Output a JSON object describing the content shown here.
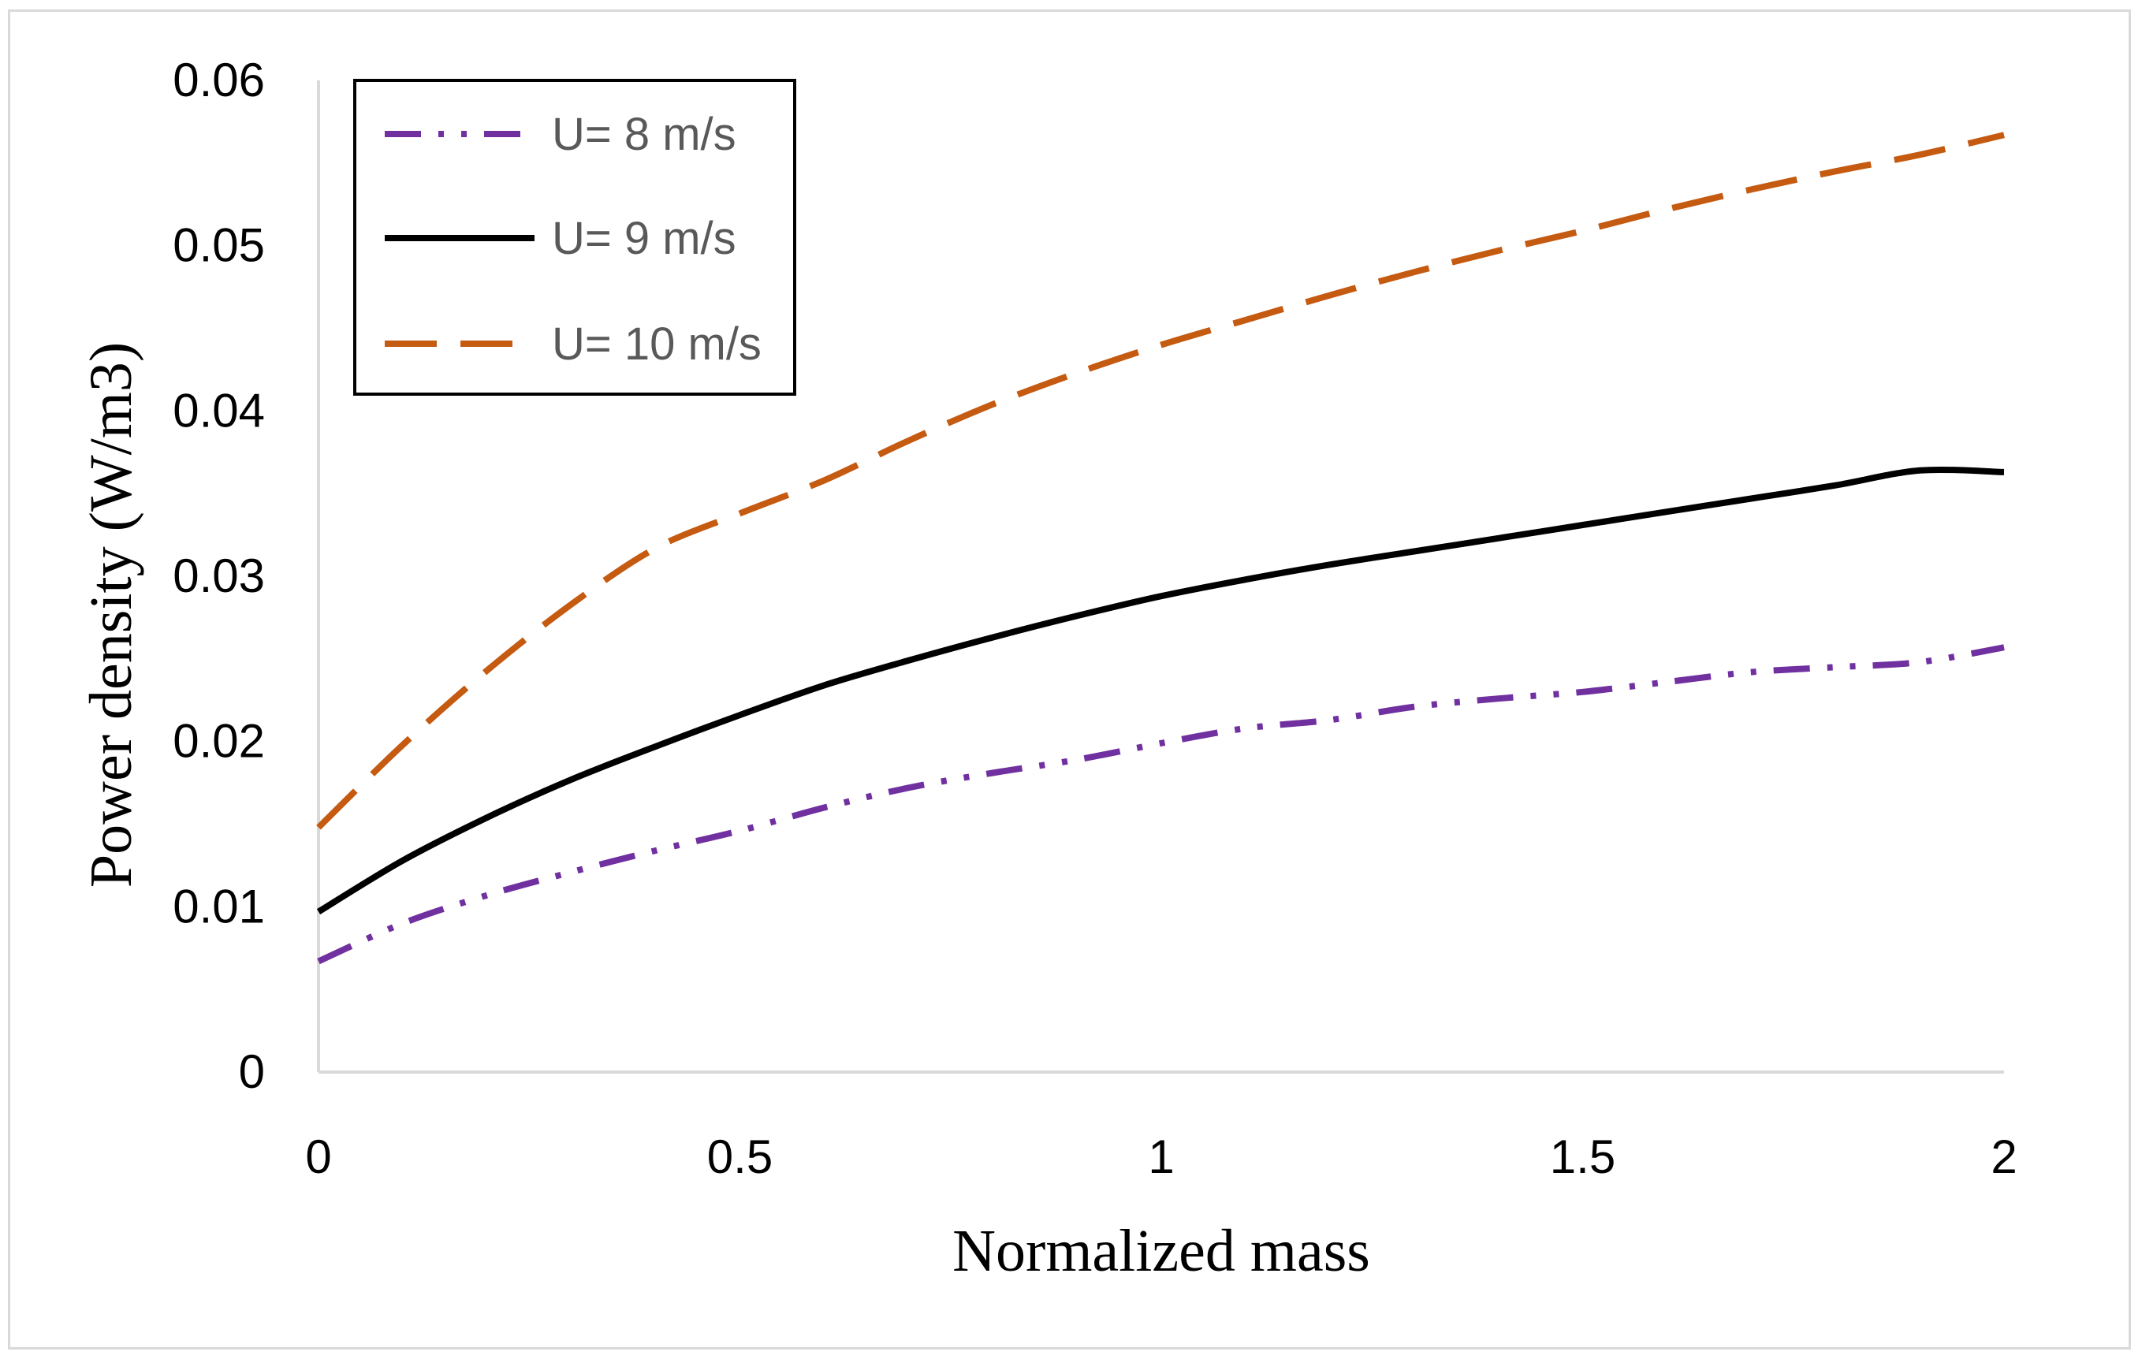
{
  "chart_data": {
    "type": "line",
    "title": "",
    "xlabel": "Normalized mass",
    "ylabel": "Power density (W/m3)",
    "xlim": [
      0,
      2
    ],
    "ylim": [
      0,
      0.06
    ],
    "x_ticks": [
      "0",
      "0.5",
      "1",
      "1.5",
      "2"
    ],
    "y_ticks": [
      "0",
      "0.01",
      "0.02",
      "0.03",
      "0.04",
      "0.05",
      "0.06"
    ],
    "grid": false,
    "legend_position": "top-left",
    "series": [
      {
        "name": "U= 8 m/s",
        "color": "#7030a0",
        "style": "dash-dot-dot",
        "x": [
          0,
          0.1,
          0.2,
          0.3,
          0.4,
          0.5,
          0.6,
          0.7,
          0.8,
          0.9,
          1.0,
          1.1,
          1.2,
          1.3,
          1.4,
          1.5,
          1.6,
          1.7,
          1.8,
          1.9,
          2.0
        ],
        "y": [
          0.0067,
          0.009,
          0.0107,
          0.0121,
          0.0134,
          0.0146,
          0.016,
          0.0172,
          0.0181,
          0.0189,
          0.0199,
          0.0208,
          0.0213,
          0.0221,
          0.0226,
          0.023,
          0.0236,
          0.0242,
          0.0245,
          0.0248,
          0.0257
        ]
      },
      {
        "name": "U= 9 m/s",
        "color": "#000000",
        "style": "solid",
        "x": [
          0,
          0.1,
          0.2,
          0.3,
          0.4,
          0.5,
          0.6,
          0.7,
          0.8,
          0.9,
          1.0,
          1.1,
          1.2,
          1.3,
          1.4,
          1.5,
          1.6,
          1.7,
          1.8,
          1.9,
          2.0
        ],
        "y": [
          0.0097,
          0.0128,
          0.0154,
          0.0177,
          0.0197,
          0.0216,
          0.0234,
          0.0249,
          0.0263,
          0.0276,
          0.0288,
          0.0298,
          0.0307,
          0.0315,
          0.0323,
          0.0331,
          0.0339,
          0.0347,
          0.0355,
          0.0364,
          0.0363
        ]
      },
      {
        "name": "U= 10 m/s",
        "color": "#c55a11",
        "style": "dashed",
        "x": [
          0,
          0.1,
          0.2,
          0.3,
          0.4,
          0.5,
          0.6,
          0.7,
          0.8,
          0.9,
          1.0,
          1.1,
          1.2,
          1.3,
          1.4,
          1.5,
          1.6,
          1.7,
          1.8,
          1.9,
          2.0
        ],
        "y": [
          0.0148,
          0.0198,
          0.0243,
          0.0283,
          0.0317,
          0.0338,
          0.0358,
          0.0382,
          0.0404,
          0.0423,
          0.044,
          0.0455,
          0.047,
          0.0484,
          0.0497,
          0.0509,
          0.0522,
          0.0534,
          0.0545,
          0.0555,
          0.0567
        ]
      }
    ]
  }
}
